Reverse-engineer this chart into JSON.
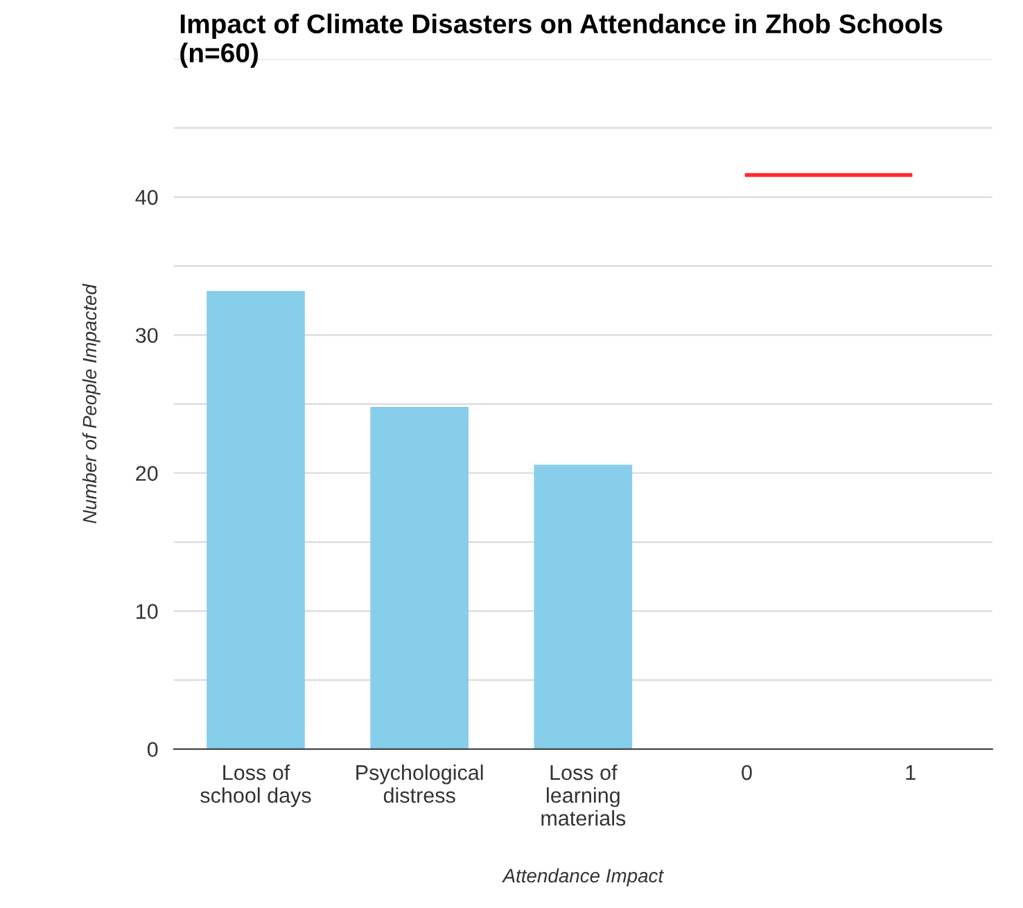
{
  "chart_data": {
    "type": "bar",
    "title": "Impact of Climate Disasters on Attendance in Zhob Schools (n=60)",
    "xlabel": "Attendance Impact",
    "ylabel": "Number of People Impacted",
    "categories": [
      "Loss of\nschool days",
      "Psychological\ndistress",
      "Loss of\nlearning\nmaterials",
      "0",
      "1"
    ],
    "series": [
      {
        "color": "#87ceeb",
        "values": [
          33.2,
          24.8,
          20.6,
          null,
          null
        ]
      },
      {
        "type": "line",
        "color": "#ff2a2a",
        "values": [
          null,
          null,
          null,
          41.6,
          41.6
        ]
      }
    ],
    "ylim": [
      0,
      50
    ],
    "yticks": [
      0,
      {
        "value": 5,
        "label": null
      },
      10,
      {
        "value": 15,
        "label": null
      },
      20,
      {
        "value": 25,
        "label": null
      },
      30,
      {
        "value": 35,
        "label": null
      },
      40,
      {
        "value": 45,
        "label": null
      },
      {
        "value": 50,
        "label": null
      }
    ],
    "grid": "y",
    "legend": false,
    "marker": "none",
    "line_style": "solid"
  }
}
